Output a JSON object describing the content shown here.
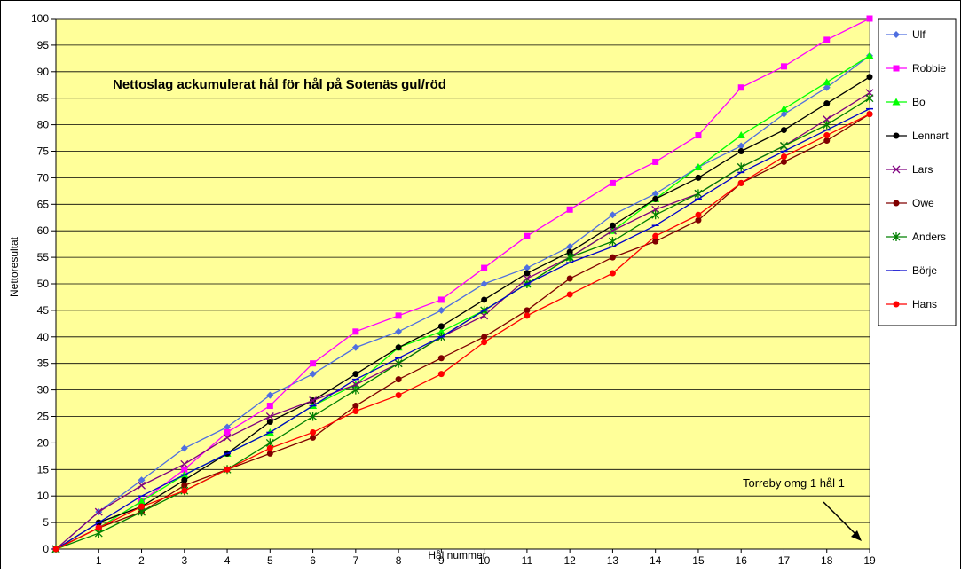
{
  "chart_data": {
    "type": "line",
    "title": "Nettoslag ackumulerat hål för hål på Sotenäs gul/röd",
    "xlabel": "Hål nummer",
    "ylabel": "Nettoresultat",
    "annotation": "Torreby omg 1 hål 1",
    "xlim": [
      0,
      19
    ],
    "ylim": [
      0,
      100
    ],
    "y_ticks": [
      0,
      5,
      10,
      15,
      20,
      25,
      30,
      35,
      40,
      45,
      50,
      55,
      60,
      65,
      70,
      75,
      80,
      85,
      90,
      95,
      100
    ],
    "x_ticks": [
      1,
      2,
      3,
      4,
      5,
      6,
      7,
      8,
      9,
      10,
      11,
      12,
      13,
      14,
      15,
      16,
      17,
      18,
      19
    ],
    "grid": true,
    "legend_position": "right",
    "plot_background": "#ffff99",
    "x": [
      0,
      1,
      2,
      3,
      4,
      5,
      6,
      7,
      8,
      9,
      10,
      11,
      12,
      13,
      14,
      15,
      16,
      17,
      18,
      19
    ],
    "series": [
      {
        "name": "Ulf",
        "color": "#4f6fe0",
        "marker": "diamond",
        "values": [
          0,
          7,
          13,
          19,
          23,
          29,
          33,
          38,
          41,
          45,
          50,
          53,
          57,
          63,
          67,
          72,
          76,
          82,
          87,
          93
        ]
      },
      {
        "name": "Robbie",
        "color": "#ff00ff",
        "marker": "square",
        "values": [
          0,
          4,
          9,
          15,
          22,
          27,
          35,
          41,
          44,
          47,
          53,
          59,
          64,
          69,
          73,
          78,
          87,
          91,
          96,
          100
        ]
      },
      {
        "name": "Bo",
        "color": "#00ff00",
        "marker": "triangle",
        "values": [
          0,
          4,
          9,
          14,
          18,
          22,
          27,
          31,
          38,
          41,
          45,
          50,
          55,
          60,
          66,
          72,
          78,
          83,
          88,
          93
        ]
      },
      {
        "name": "Lennart",
        "color": "#000000",
        "marker": "circle",
        "values": [
          0,
          5,
          8,
          13,
          18,
          24,
          28,
          33,
          38,
          42,
          47,
          52,
          56,
          61,
          66,
          70,
          75,
          79,
          84,
          89
        ]
      },
      {
        "name": "Lars",
        "color": "#800080",
        "marker": "x",
        "values": [
          0,
          7,
          12,
          16,
          21,
          25,
          28,
          31,
          35,
          40,
          44,
          51,
          55,
          60,
          64,
          67,
          72,
          76,
          81,
          86
        ]
      },
      {
        "name": "Owe",
        "color": "#800000",
        "marker": "circle",
        "values": [
          0,
          4,
          7,
          12,
          15,
          18,
          21,
          27,
          32,
          36,
          40,
          45,
          51,
          55,
          58,
          62,
          69,
          73,
          77,
          82
        ]
      },
      {
        "name": "Anders",
        "color": "#008000",
        "marker": "asterisk",
        "values": [
          0,
          3,
          7,
          11,
          15,
          20,
          25,
          30,
          35,
          40,
          45,
          50,
          55,
          58,
          63,
          67,
          72,
          76,
          80,
          85
        ]
      },
      {
        "name": "Börje",
        "color": "#0000cc",
        "marker": "dash",
        "values": [
          0,
          5,
          10,
          14,
          18,
          22,
          27,
          32,
          36,
          40,
          45,
          50,
          54,
          57,
          61,
          66,
          71,
          75,
          79,
          83
        ]
      },
      {
        "name": "Hans",
        "color": "#ff0000",
        "marker": "circle",
        "values": [
          0,
          4,
          8,
          11,
          15,
          19,
          22,
          26,
          29,
          33,
          39,
          44,
          48,
          52,
          59,
          63,
          69,
          74,
          78,
          82
        ]
      }
    ]
  }
}
